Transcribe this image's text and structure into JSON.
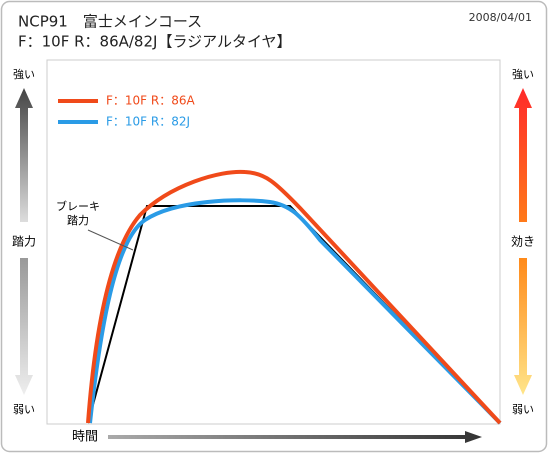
{
  "header": {
    "title": "NCP91　富士メインコース",
    "subtitle": "F：10F  R：86A/82J【ラジアルタイヤ】",
    "date": "2008/04/01"
  },
  "legend": [
    {
      "label": "F：10F  R：86A",
      "color": "#f04a1a"
    },
    {
      "label": "F：10F  R：82J",
      "color": "#2a9be6"
    }
  ],
  "left_axis": {
    "top": "強い",
    "middle": "踏力",
    "bottom": "弱い"
  },
  "right_axis": {
    "top": "強い",
    "middle": "効き",
    "bottom": "弱い"
  },
  "x_axis": {
    "label": "時間"
  },
  "annotation": [
    "ブレーキ",
    "踏力"
  ]
}
